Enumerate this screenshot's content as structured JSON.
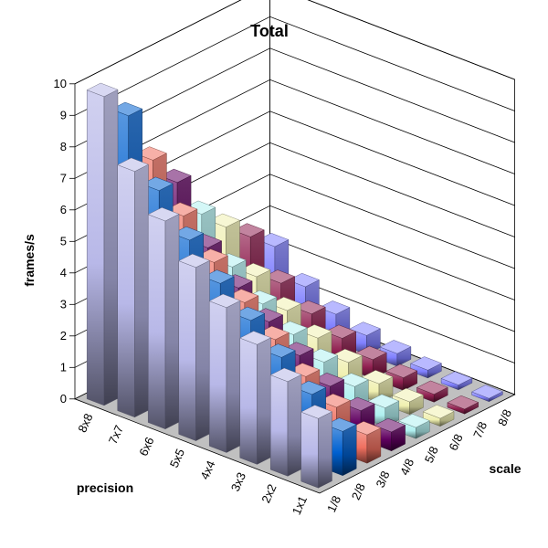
{
  "chart_data": {
    "type": "bar3d",
    "title": "Total",
    "ylabel": "frames/s",
    "xlabel": "precision",
    "zlabel": "scale",
    "ylim": [
      0,
      10
    ],
    "yticks": [
      0,
      1,
      2,
      3,
      4,
      5,
      6,
      7,
      8,
      9,
      10
    ],
    "precision_categories": [
      "1x1",
      "2x2",
      "3x3",
      "4x4",
      "5x5",
      "6x6",
      "7x7",
      "8x8"
    ],
    "scale_categories": [
      "1/8",
      "2/8",
      "3/8",
      "4/8",
      "5/8",
      "6/8",
      "7/8",
      "8/8"
    ],
    "series": [
      {
        "scale": "1/8",
        "color": "#b8b8e8",
        "values": [
          2.2,
          3.0,
          3.8,
          4.6,
          5.5,
          6.6,
          7.8,
          9.8
        ]
      },
      {
        "scale": "2/8",
        "color": "#0060d0",
        "values": [
          1.4,
          2.2,
          3.0,
          3.8,
          4.6,
          5.6,
          6.8,
          8.8
        ]
      },
      {
        "scale": "3/8",
        "color": "#f07060",
        "values": [
          0.9,
          1.4,
          2.0,
          2.8,
          3.6,
          4.5,
          5.6,
          7.0
        ]
      },
      {
        "scale": "4/8",
        "color": "#600060",
        "values": [
          0.6,
          0.9,
          1.3,
          1.9,
          2.6,
          3.3,
          4.2,
          5.9
        ]
      },
      {
        "scale": "5/8",
        "color": "#b0f0f0",
        "values": [
          0.35,
          0.6,
          0.9,
          1.3,
          1.8,
          2.4,
          3.2,
          4.5
        ]
      },
      {
        "scale": "6/8",
        "color": "#f0f0b0",
        "values": [
          0.25,
          0.4,
          0.6,
          0.9,
          1.3,
          1.8,
          2.5,
          3.7
        ]
      },
      {
        "scale": "7/8",
        "color": "#902050",
        "values": [
          0.15,
          0.25,
          0.4,
          0.6,
          0.9,
          1.3,
          1.9,
          3.0
        ]
      },
      {
        "scale": "8/8",
        "color": "#8080ff",
        "values": [
          0.1,
          0.15,
          0.25,
          0.4,
          0.6,
          0.9,
          1.4,
          2.3
        ]
      }
    ]
  }
}
